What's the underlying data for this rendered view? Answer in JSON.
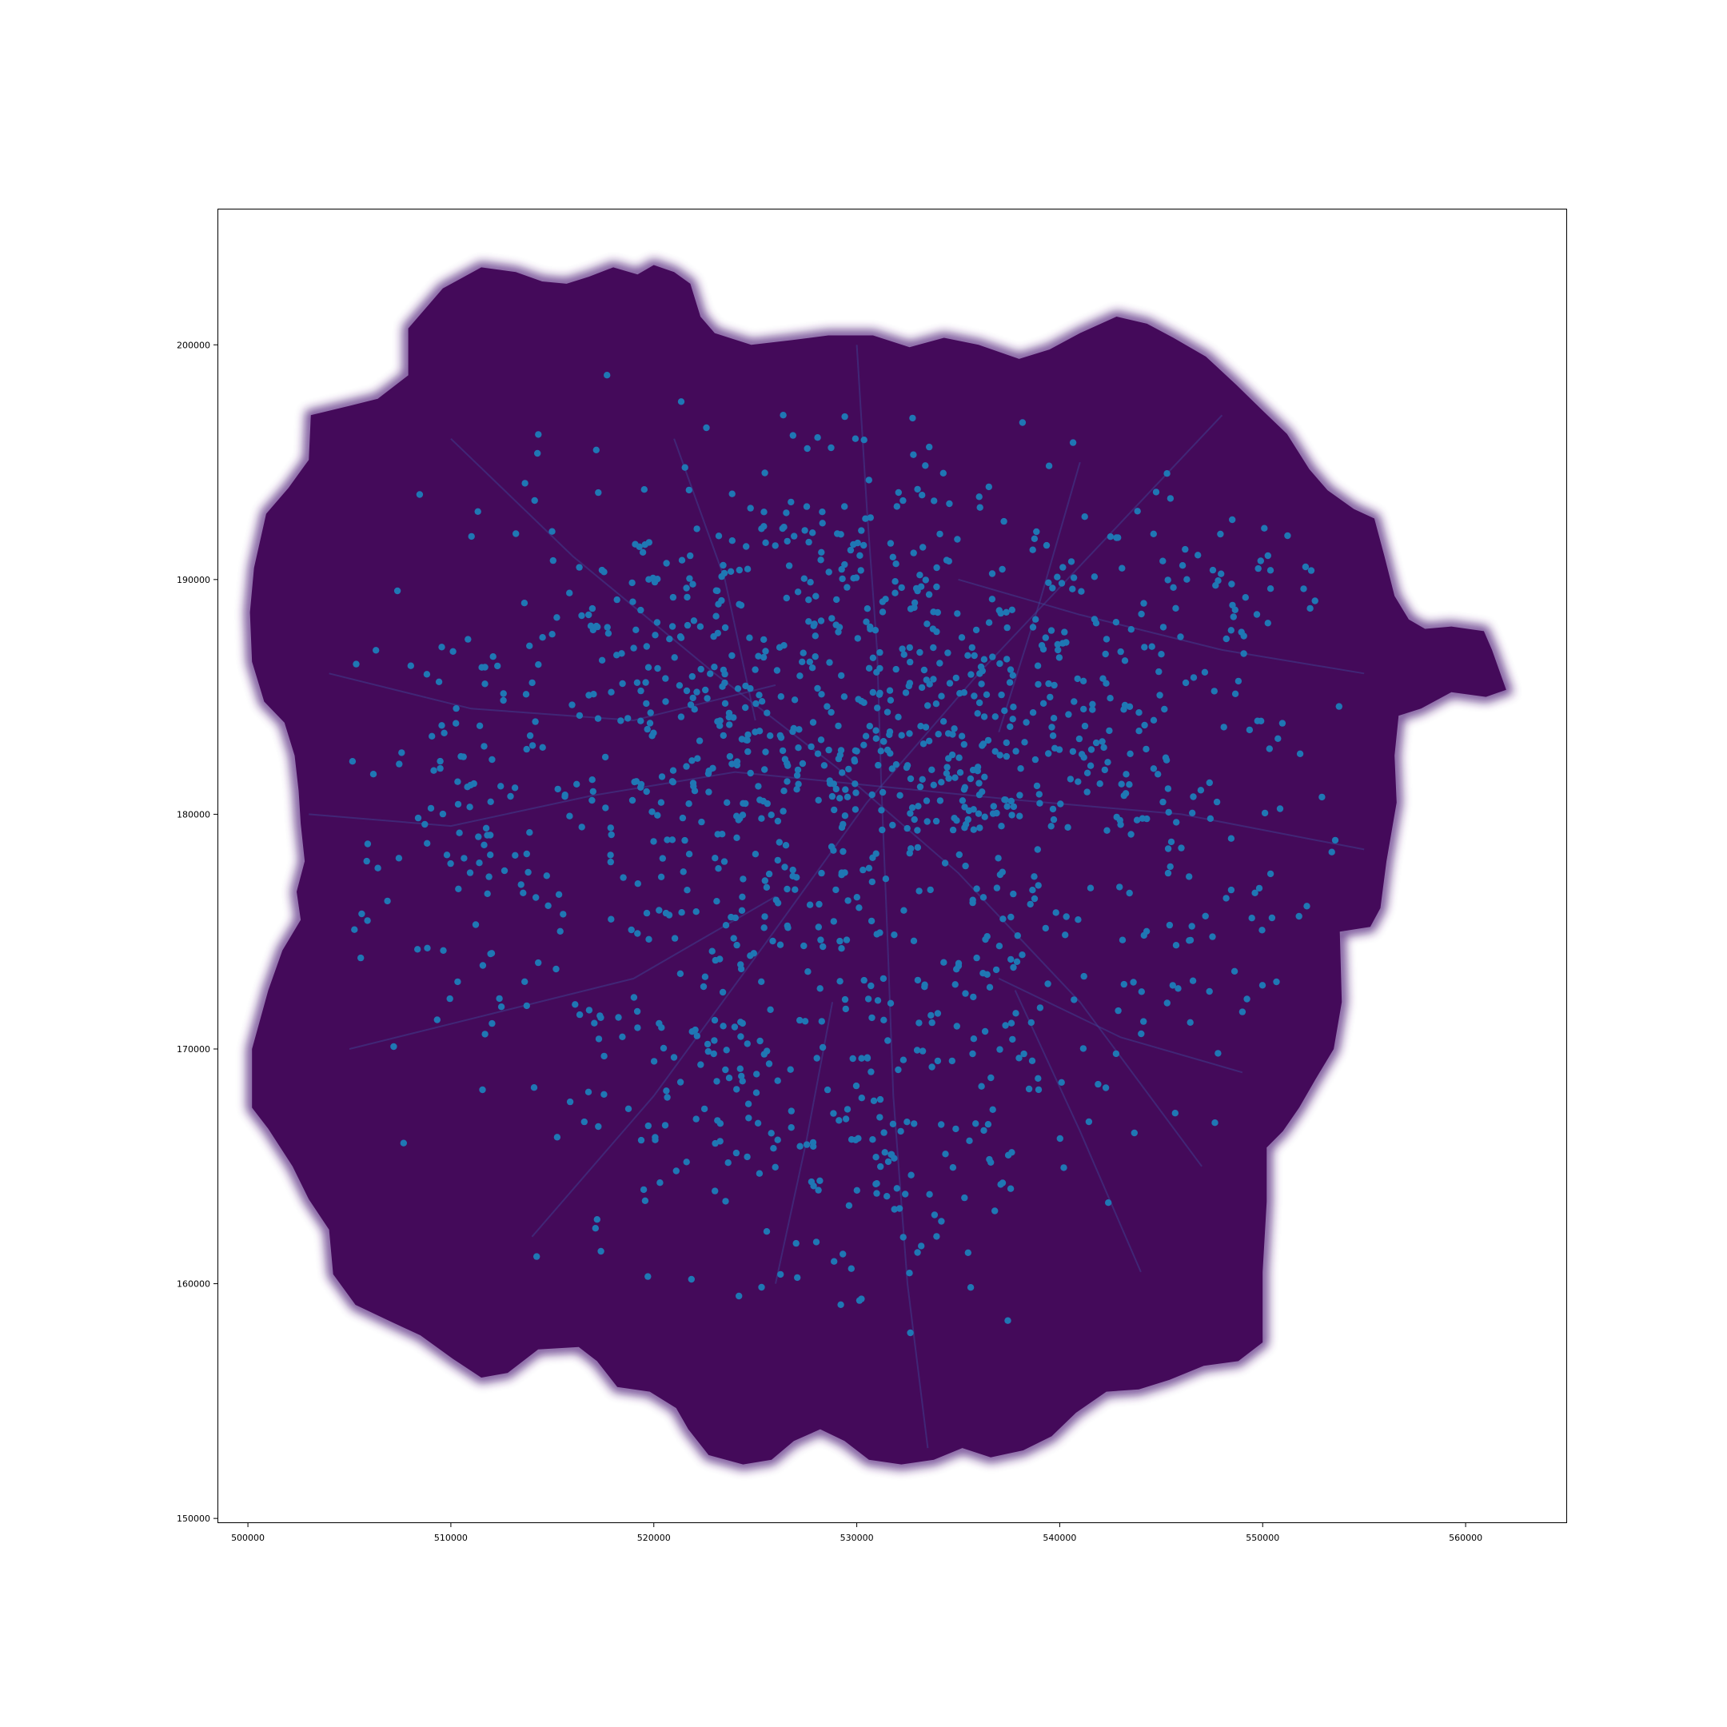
{
  "map": {
    "kind": "projected-point-map",
    "colors": {
      "background": "#ffffff",
      "land_fill": "#440a5a",
      "land_glow": "#4d1a78",
      "road_lines": "#3e4a9a",
      "points": "#1f77b4",
      "axes": "#000000"
    },
    "x_axis": {
      "range": [
        498500,
        565000
      ],
      "ticks": [
        500000,
        510000,
        520000,
        530000,
        540000,
        550000,
        560000
      ],
      "tick_labels": [
        "500000",
        "510000",
        "520000",
        "530000",
        "540000",
        "550000",
        "560000"
      ]
    },
    "y_axis": {
      "range": [
        149800,
        205800
      ],
      "ticks": [
        150000,
        160000,
        170000,
        180000,
        190000,
        200000
      ],
      "tick_labels": [
        "150000",
        "160000",
        "170000",
        "180000",
        "190000",
        "200000"
      ]
    },
    "grid": false,
    "legend": "none",
    "boundary": [
      [
        507900,
        200700
      ],
      [
        509600,
        202400
      ],
      [
        511500,
        203300
      ],
      [
        513200,
        203100
      ],
      [
        514500,
        202700
      ],
      [
        515700,
        202600
      ],
      [
        516800,
        202900
      ],
      [
        518000,
        203300
      ],
      [
        519200,
        203000
      ],
      [
        520000,
        203400
      ],
      [
        521000,
        203100
      ],
      [
        521800,
        202600
      ],
      [
        522300,
        201200
      ],
      [
        523000,
        200500
      ],
      [
        524800,
        200000
      ],
      [
        526800,
        200200
      ],
      [
        528600,
        200400
      ],
      [
        530800,
        200400
      ],
      [
        532600,
        199900
      ],
      [
        534300,
        200300
      ],
      [
        536000,
        200000
      ],
      [
        538000,
        199400
      ],
      [
        539500,
        199800
      ],
      [
        541000,
        200500
      ],
      [
        542800,
        201200
      ],
      [
        544300,
        200900
      ],
      [
        545600,
        200300
      ],
      [
        547200,
        199500
      ],
      [
        548700,
        198300
      ],
      [
        550000,
        197200
      ],
      [
        551200,
        196200
      ],
      [
        552300,
        194700
      ],
      [
        553200,
        193800
      ],
      [
        554500,
        193000
      ],
      [
        555500,
        192600
      ],
      [
        556000,
        191000
      ],
      [
        556500,
        189300
      ],
      [
        557200,
        188300
      ],
      [
        558000,
        187900
      ],
      [
        559300,
        188000
      ],
      [
        560900,
        187800
      ],
      [
        561300,
        187000
      ],
      [
        562000,
        185300
      ],
      [
        561000,
        185000
      ],
      [
        559300,
        185200
      ],
      [
        557800,
        184500
      ],
      [
        556700,
        184200
      ],
      [
        556500,
        182500
      ],
      [
        556600,
        180500
      ],
      [
        556100,
        178000
      ],
      [
        555800,
        176000
      ],
      [
        555300,
        175200
      ],
      [
        553800,
        175000
      ],
      [
        553900,
        172000
      ],
      [
        553500,
        170000
      ],
      [
        552600,
        168700
      ],
      [
        551800,
        167500
      ],
      [
        551000,
        166500
      ],
      [
        550200,
        165800
      ],
      [
        550200,
        163500
      ],
      [
        550000,
        160500
      ],
      [
        550000,
        157500
      ],
      [
        548800,
        156700
      ],
      [
        547100,
        156500
      ],
      [
        545400,
        155900
      ],
      [
        543900,
        155500
      ],
      [
        542300,
        155400
      ],
      [
        540800,
        154500
      ],
      [
        539600,
        153500
      ],
      [
        538200,
        152900
      ],
      [
        536600,
        152600
      ],
      [
        535200,
        153000
      ],
      [
        533800,
        152500
      ],
      [
        532200,
        152300
      ],
      [
        530600,
        152500
      ],
      [
        529400,
        153300
      ],
      [
        528200,
        153800
      ],
      [
        526900,
        153300
      ],
      [
        525800,
        152500
      ],
      [
        524400,
        152300
      ],
      [
        522700,
        152700
      ],
      [
        521700,
        153800
      ],
      [
        521100,
        154700
      ],
      [
        519800,
        155400
      ],
      [
        518200,
        155600
      ],
      [
        517200,
        156700
      ],
      [
        516300,
        157300
      ],
      [
        514300,
        157200
      ],
      [
        512800,
        156200
      ],
      [
        511500,
        156000
      ],
      [
        510100,
        156800
      ],
      [
        508500,
        157800
      ],
      [
        507000,
        158400
      ],
      [
        505300,
        159100
      ],
      [
        504200,
        160400
      ],
      [
        504000,
        162300
      ],
      [
        503000,
        163600
      ],
      [
        502200,
        165000
      ],
      [
        501000,
        166600
      ],
      [
        500200,
        167500
      ],
      [
        500200,
        170000
      ],
      [
        501000,
        172500
      ],
      [
        501700,
        174200
      ],
      [
        502600,
        175500
      ],
      [
        502400,
        176700
      ],
      [
        502800,
        178000
      ],
      [
        502600,
        179600
      ],
      [
        502500,
        181000
      ],
      [
        502300,
        182500
      ],
      [
        501800,
        183900
      ],
      [
        500800,
        184800
      ],
      [
        500200,
        186500
      ],
      [
        500100,
        188600
      ],
      [
        500300,
        190500
      ],
      [
        500900,
        192800
      ],
      [
        502000,
        193900
      ],
      [
        503000,
        195100
      ],
      [
        503100,
        197000
      ],
      [
        505000,
        197400
      ],
      [
        506400,
        197700
      ],
      [
        507900,
        198700
      ]
    ],
    "roads": [
      [
        [
          503000,
          180000
        ],
        [
          510000,
          179500
        ],
        [
          517000,
          180800
        ],
        [
          524000,
          181800
        ],
        [
          531000,
          181200
        ],
        [
          538000,
          180600
        ],
        [
          546000,
          180000
        ],
        [
          555000,
          178500
        ]
      ],
      [
        [
          530000,
          200000
        ],
        [
          530500,
          193000
        ],
        [
          531000,
          187000
        ],
        [
          531200,
          181500
        ],
        [
          531500,
          175000
        ],
        [
          531800,
          168000
        ],
        [
          532500,
          160000
        ],
        [
          533500,
          153000
        ]
      ],
      [
        [
          510000,
          196000
        ],
        [
          516000,
          191000
        ],
        [
          523000,
          186000
        ],
        [
          529000,
          182000
        ],
        [
          535000,
          177500
        ],
        [
          541000,
          172000
        ],
        [
          547000,
          165000
        ]
      ],
      [
        [
          514000,
          162000
        ],
        [
          520000,
          168000
        ],
        [
          525500,
          174500
        ],
        [
          530500,
          180500
        ],
        [
          536000,
          186000
        ],
        [
          542000,
          191500
        ],
        [
          548000,
          197000
        ]
      ],
      [
        [
          504000,
          186000
        ],
        [
          511000,
          184500
        ],
        [
          519000,
          184000
        ],
        [
          526000,
          185500
        ]
      ],
      [
        [
          535000,
          190000
        ],
        [
          541000,
          188500
        ],
        [
          548000,
          187000
        ],
        [
          555000,
          186000
        ]
      ],
      [
        [
          505000,
          170000
        ],
        [
          512000,
          171500
        ],
        [
          519000,
          173000
        ],
        [
          526000,
          176500
        ]
      ],
      [
        [
          537000,
          173000
        ],
        [
          543000,
          170500
        ],
        [
          549000,
          169000
        ]
      ],
      [
        [
          521000,
          196000
        ],
        [
          523500,
          190000
        ],
        [
          525000,
          184000
        ]
      ],
      [
        [
          526000,
          160000
        ],
        [
          527500,
          166000
        ],
        [
          528800,
          172000
        ]
      ],
      [
        [
          541000,
          195000
        ],
        [
          539000,
          189000
        ],
        [
          537000,
          183500
        ]
      ],
      [
        [
          544000,
          160500
        ],
        [
          541000,
          166500
        ],
        [
          537800,
          172500
        ]
      ]
    ],
    "point_seeds": [
      [
        529,
        181,
        8,
        8,
        520
      ],
      [
        524,
        182.5,
        2.2,
        2.2,
        60
      ],
      [
        533,
        187.5,
        2.2,
        2.2,
        60
      ],
      [
        540,
        184,
        3,
        2.5,
        70
      ],
      [
        534,
        182,
        2.5,
        2,
        60
      ],
      [
        512,
        180,
        4.5,
        5,
        120
      ],
      [
        547,
        178,
        4.5,
        6,
        110
      ],
      [
        523,
        168,
        4,
        3,
        70
      ],
      [
        533,
        167,
        4.5,
        4,
        80
      ],
      [
        527,
        192,
        5,
        2.5,
        70
      ],
      [
        520,
        188,
        3.5,
        2.5,
        50
      ],
      [
        542,
        188,
        4,
        2.5,
        50
      ],
      [
        549,
        190,
        3.5,
        2,
        25
      ],
      [
        530,
        163,
        3,
        2.5,
        30
      ]
    ]
  }
}
